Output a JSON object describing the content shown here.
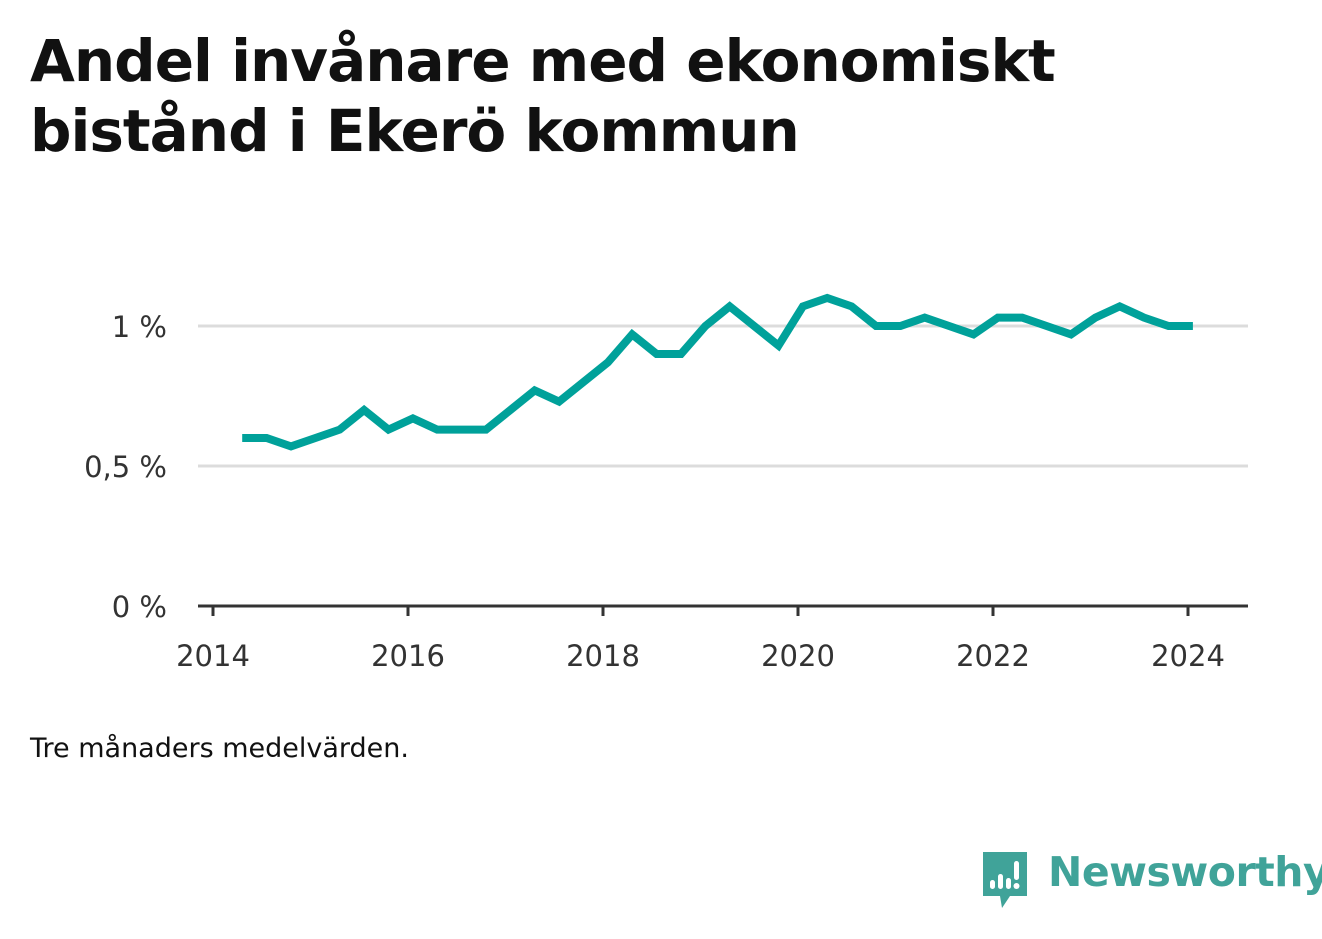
{
  "title": "Andel invånare med ekonomiskt bistånd i Ekerö kommun",
  "note": "Tre månaders medelvärden.",
  "brand": {
    "name": "Newsworthy",
    "icon": "newsworthy-logo-icon",
    "color": "#40a399"
  },
  "chart_data": {
    "type": "line",
    "title": "Andel invånare med ekonomiskt bistånd i Ekerö kommun",
    "xlabel": "",
    "ylabel": "",
    "xlim": [
      2014.0,
      2024.5
    ],
    "ylim": [
      0,
      1.25
    ],
    "x_ticks": [
      2014,
      2016,
      2018,
      2020,
      2022,
      2024
    ],
    "x_tick_labels": [
      "2014",
      "2016",
      "2018",
      "2020",
      "2022",
      "2024"
    ],
    "y_ticks": [
      0,
      0.5,
      1
    ],
    "y_tick_labels": [
      "0 %",
      "0,5 %",
      "1 %"
    ],
    "grid": "horizontal",
    "line_color": "#00a19a",
    "series": [
      {
        "x": [
          2014.3,
          2014.55,
          2014.8,
          2015.05,
          2015.3,
          2015.55,
          2015.8,
          2016.05,
          2016.3,
          2016.55,
          2016.8,
          2017.05,
          2017.3,
          2017.55,
          2017.8,
          2018.05,
          2018.3,
          2018.55,
          2018.8,
          2019.05,
          2019.3,
          2019.55,
          2019.8,
          2020.05,
          2020.3,
          2020.55,
          2020.8,
          2021.05,
          2021.3,
          2021.55,
          2021.8,
          2022.05,
          2022.3,
          2022.55,
          2022.8,
          2023.05,
          2023.3,
          2023.55,
          2023.8,
          2024.05
        ],
        "values": [
          0.6,
          0.6,
          0.57,
          0.6,
          0.63,
          0.7,
          0.63,
          0.67,
          0.63,
          0.63,
          0.63,
          0.7,
          0.77,
          0.73,
          0.8,
          0.87,
          0.97,
          0.9,
          0.9,
          1.0,
          1.07,
          1.0,
          0.93,
          1.07,
          1.1,
          1.07,
          1.0,
          1.0,
          1.03,
          1.0,
          0.97,
          1.03,
          1.03,
          1.0,
          0.97,
          1.03,
          1.07,
          1.03,
          1.0,
          1.0
        ]
      }
    ]
  }
}
